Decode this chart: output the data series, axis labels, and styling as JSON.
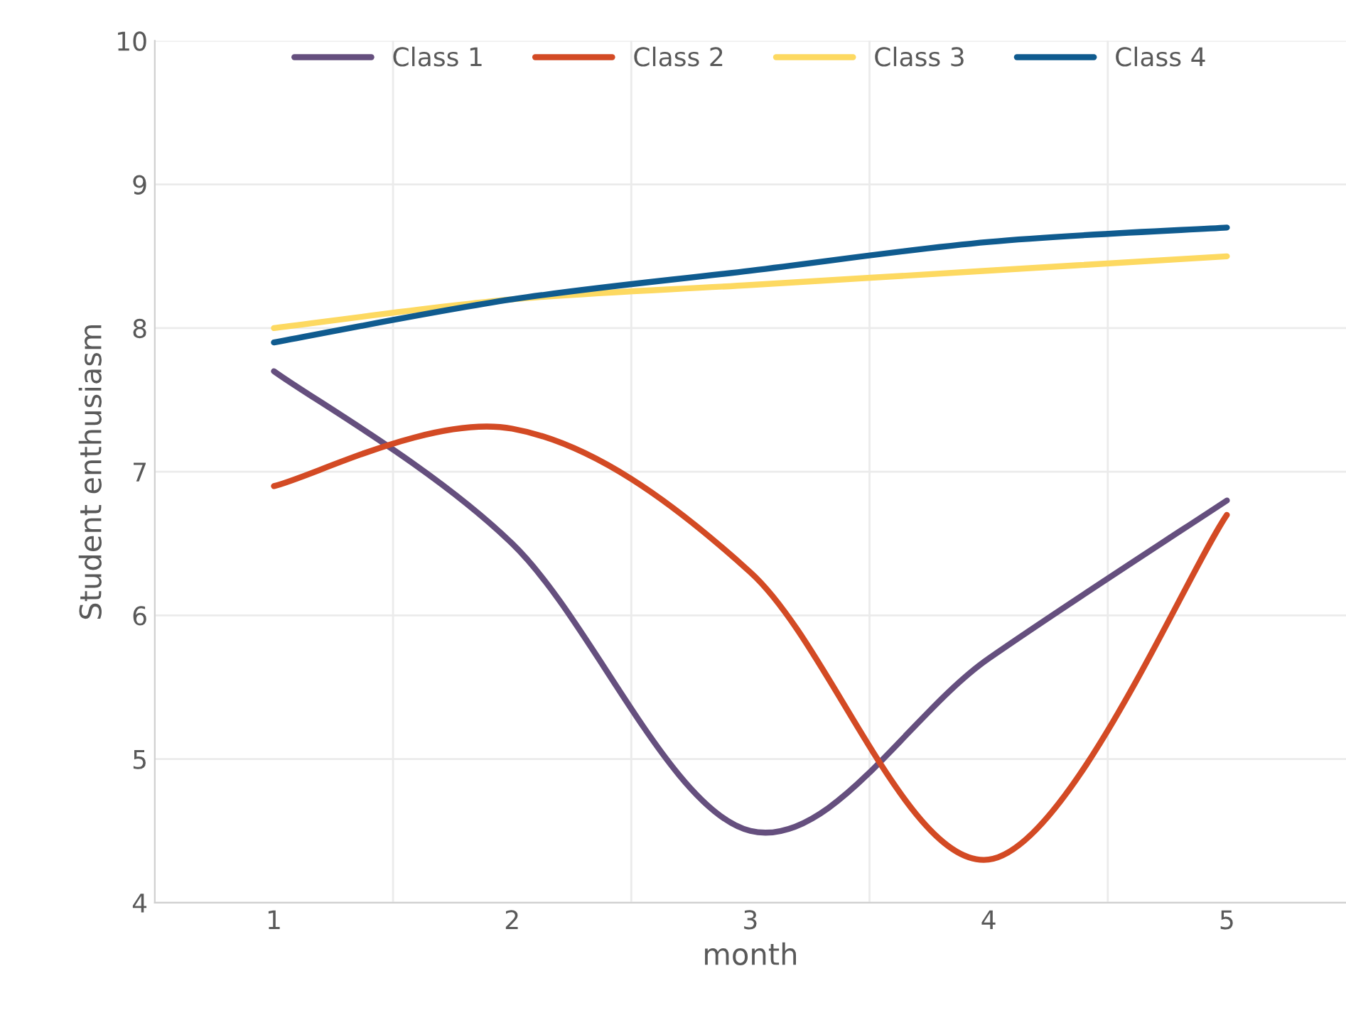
{
  "chart_data": {
    "type": "line",
    "xlabel": "month",
    "ylabel": "Student enthusiasm",
    "categories": [
      "1",
      "2",
      "3",
      "4",
      "5"
    ],
    "series": [
      {
        "name": "Class 1",
        "color": "#654f7e",
        "values": [
          7.7,
          6.5,
          4.5,
          5.7,
          6.8
        ]
      },
      {
        "name": "Class 2",
        "color": "#d34a24",
        "values": [
          6.9,
          7.3,
          6.3,
          4.3,
          6.7
        ]
      },
      {
        "name": "Class 3",
        "color": "#fdd961",
        "values": [
          8.0,
          8.2,
          8.3,
          8.4,
          8.5
        ]
      },
      {
        "name": "Class 4",
        "color": "#0f5b8f",
        "values": [
          7.9,
          8.2,
          8.4,
          8.6,
          8.7
        ]
      }
    ],
    "ylim": [
      4,
      10
    ],
    "yticks": [
      4,
      5,
      6,
      7,
      8,
      9,
      10
    ],
    "grid": true,
    "legend": "top",
    "marker": "none",
    "line_style": "solid"
  }
}
